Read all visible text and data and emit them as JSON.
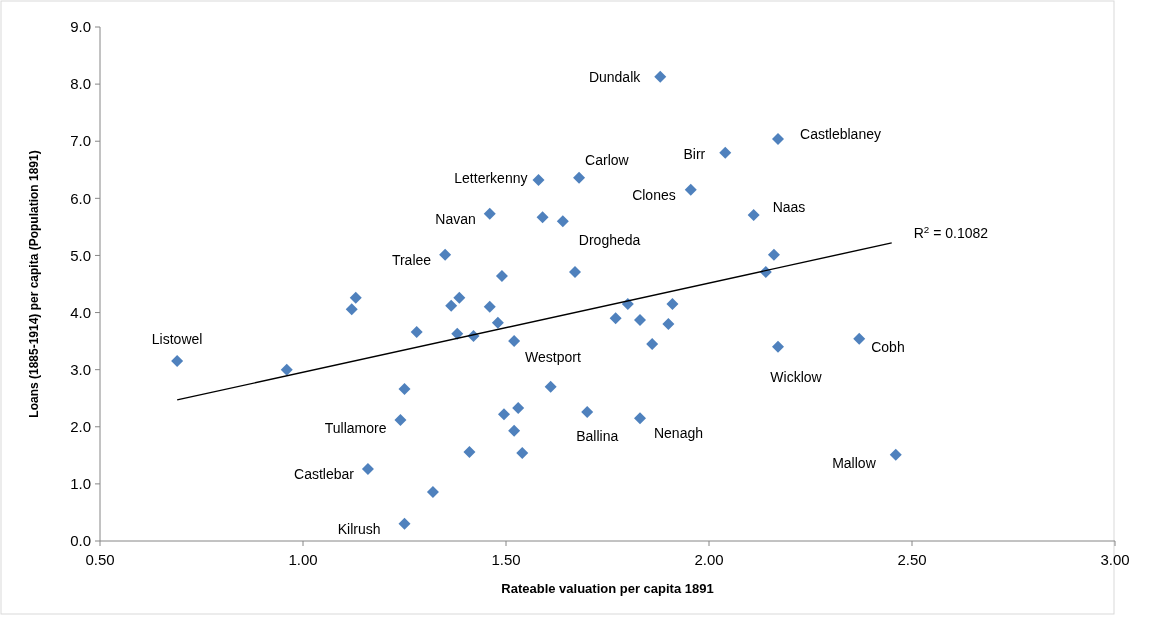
{
  "chart_data": {
    "type": "scatter",
    "xlabel": "Rateable valuation per capita 1891",
    "ylabel": "Loans (1885-1914) per capita (Population 1891)",
    "xlim": [
      0.5,
      3.0
    ],
    "xticks": [
      {
        "value": 0.5,
        "label": "0.50"
      },
      {
        "value": 1,
        "label": "1.00"
      },
      {
        "value": 1.5,
        "label": "1.50"
      },
      {
        "value": 2,
        "label": "2.00"
      },
      {
        "value": 2.5,
        "label": "2.50"
      },
      {
        "value": 3,
        "label": "3.00"
      }
    ],
    "ylim": [
      0,
      9
    ],
    "yticks": [
      {
        "value": 0,
        "label": "0.0"
      },
      {
        "value": 1,
        "label": "1.0"
      },
      {
        "value": 2,
        "label": "2.0"
      },
      {
        "value": 3,
        "label": "3.0"
      },
      {
        "value": 4,
        "label": "4.0"
      },
      {
        "value": 5,
        "label": "5.0"
      },
      {
        "value": 6,
        "label": "6.0"
      },
      {
        "value": 7,
        "label": "7.0"
      },
      {
        "value": 8,
        "label": "8.0"
      },
      {
        "value": 9,
        "label": "9.0"
      }
    ],
    "marker": "diamond",
    "series": [
      {
        "color": "#4f81bd",
        "x": [
          0.69,
          0.96,
          1.13,
          1.12,
          1.35,
          1.28,
          1.365,
          1.385,
          1.38,
          1.42,
          1.46,
          1.46,
          1.48,
          1.49,
          1.52,
          1.58,
          1.59,
          1.64,
          1.68,
          1.67,
          1.25,
          1.24,
          1.16,
          1.32,
          1.25,
          1.495,
          1.53,
          1.52,
          1.41,
          1.54,
          1.61,
          1.7,
          1.83,
          1.88,
          2.04,
          2.17,
          1.955,
          2.11,
          2.16,
          2.14,
          1.8,
          1.77,
          1.83,
          1.91,
          1.9,
          1.86,
          2.17,
          2.37,
          2.46
        ],
        "values": [
          3.15,
          3.0,
          4.26,
          4.06,
          5.01,
          3.66,
          4.12,
          4.26,
          3.63,
          3.59,
          5.73,
          4.1,
          3.82,
          4.64,
          3.5,
          6.32,
          5.67,
          5.6,
          6.36,
          4.71,
          2.66,
          2.12,
          1.26,
          0.86,
          0.3,
          2.22,
          2.33,
          1.93,
          1.56,
          1.54,
          2.7,
          2.26,
          2.15,
          8.13,
          6.8,
          7.04,
          6.15,
          5.71,
          5.01,
          4.71,
          4.15,
          3.9,
          3.87,
          4.15,
          3.8,
          3.45,
          3.4,
          3.54,
          1.51
        ]
      },
      {
        "type": "line",
        "marker": "none",
        "color": "#000000",
        "x": [
          0.69,
          2.45
        ],
        "values": [
          2.47,
          5.22
        ]
      }
    ],
    "annotations": [
      {
        "text": "Listowel",
        "x": 0.69,
        "y": 3.15
      },
      {
        "text": "Tralee",
        "x": 1.35,
        "y": 5.01
      },
      {
        "text": "Navan",
        "x": 1.46,
        "y": 5.73
      },
      {
        "text": "Letterkenny",
        "x": 1.58,
        "y": 6.32
      },
      {
        "text": "Carlow",
        "x": 1.68,
        "y": 6.36
      },
      {
        "text": "Drogheda",
        "x": 1.64,
        "y": 5.6
      },
      {
        "text": "Westport",
        "x": 1.52,
        "y": 3.5
      },
      {
        "text": "Tullamore",
        "x": 1.24,
        "y": 2.12
      },
      {
        "text": "Castlebar",
        "x": 1.16,
        "y": 1.26
      },
      {
        "text": "Kilrush",
        "x": 1.25,
        "y": 0.3
      },
      {
        "text": "Ballina",
        "x": 1.7,
        "y": 2.26
      },
      {
        "text": "Nenagh",
        "x": 1.83,
        "y": 2.15
      },
      {
        "text": "Dundalk",
        "x": 1.88,
        "y": 8.13
      },
      {
        "text": "Birr",
        "x": 2.04,
        "y": 6.8
      },
      {
        "text": "Castleblaney",
        "x": 2.17,
        "y": 7.04
      },
      {
        "text": "Clones",
        "x": 1.955,
        "y": 6.15
      },
      {
        "text": "Naas",
        "x": 2.11,
        "y": 5.71
      },
      {
        "text": "Wicklow",
        "x": 2.17,
        "y": 3.4
      },
      {
        "text": "Cobh",
        "x": 2.37,
        "y": 3.54
      },
      {
        "text": "Mallow",
        "x": 2.46,
        "y": 1.51
      },
      {
        "text": "R$^{2}$ = 0.1082",
        "x": 2.45,
        "y": 5.22
      }
    ]
  }
}
